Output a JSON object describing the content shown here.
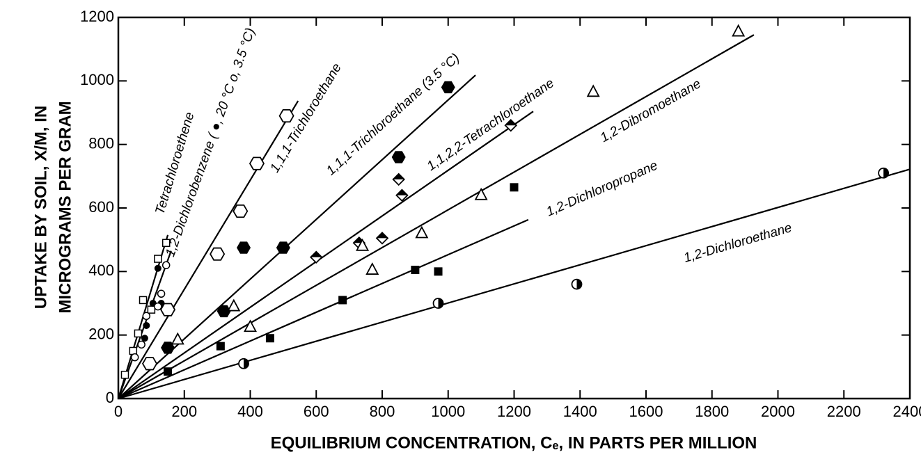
{
  "chart_data": {
    "type": "scatter",
    "xlabel": "EQUILIBRIUM CONCENTRATION, Cₑ, IN PARTS PER MILLION",
    "ylabel": [
      "UPTAKE BY SOIL, X/M, IN",
      "MICROGRAMS PER GRAM"
    ],
    "xlim": [
      0,
      2400
    ],
    "ylim": [
      0,
      1200
    ],
    "xticks": [
      0,
      200,
      400,
      600,
      800,
      1000,
      1200,
      1400,
      1600,
      1800,
      2000,
      2200,
      2400
    ],
    "yticks": [
      0,
      200,
      400,
      600,
      800,
      1000,
      1200
    ],
    "color": "#000000",
    "fits": [
      {
        "label": "Tetrachloroethene",
        "x": [
          0,
          150
        ],
        "y": [
          0,
          515
        ]
      },
      {
        "label": "1,2-Dichlorobenzene ( ●, 20 °C  o, 3.5 °C)",
        "x": [
          0,
          160
        ],
        "y": [
          0,
          465
        ]
      },
      {
        "label": "1,1,1-Trichloroethane",
        "x": [
          0,
          545
        ],
        "y": [
          0,
          937
        ]
      },
      {
        "label": "1,1,1-Trichloroethane (3.5 °C)",
        "x": [
          0,
          1083
        ],
        "y": [
          0,
          1018
        ]
      },
      {
        "label": "1,1,2,2-Tetrachloroethane",
        "x": [
          0,
          1258
        ],
        "y": [
          0,
          904
        ]
      },
      {
        "label": "1,2-Dibromoethane",
        "x": [
          0,
          1927
        ],
        "y": [
          0,
          1145
        ]
      },
      {
        "label": "1,2-Dichloropropane",
        "x": [
          0,
          1243
        ],
        "y": [
          0,
          563
        ]
      },
      {
        "label": "1,2-Dichloroethane",
        "x": [
          0,
          2400
        ],
        "y": [
          0,
          722
        ]
      }
    ],
    "series": [
      {
        "marker": "open-square",
        "x": [
          20,
          45,
          60,
          75,
          100,
          120,
          145
        ],
        "y": [
          75,
          150,
          205,
          310,
          280,
          440,
          490
        ]
      },
      {
        "marker": "filled-circle",
        "x": [
          80,
          85,
          105,
          120,
          130
        ],
        "y": [
          190,
          230,
          300,
          410,
          300
        ]
      },
      {
        "marker": "open-circle",
        "x": [
          50,
          70,
          85,
          120,
          130,
          145
        ],
        "y": [
          130,
          170,
          260,
          290,
          330,
          420
        ]
      },
      {
        "marker": "open-hexagon",
        "x": [
          95,
          150,
          300,
          370,
          420,
          510
        ],
        "y": [
          110,
          280,
          455,
          590,
          740,
          890
        ]
      },
      {
        "marker": "filled-hexagon",
        "x": [
          150,
          320,
          380,
          500,
          850,
          1000
        ],
        "y": [
          160,
          275,
          475,
          475,
          760,
          980
        ]
      },
      {
        "marker": "half-diamond",
        "x": [
          600,
          730,
          800,
          850,
          860,
          1190
        ],
        "y": [
          445,
          490,
          505,
          690,
          640,
          860
        ]
      },
      {
        "marker": "open-triangle",
        "x": [
          180,
          350,
          400,
          740,
          770,
          920,
          1100,
          1440,
          1880
        ],
        "y": [
          185,
          290,
          225,
          480,
          405,
          520,
          640,
          965,
          1155
        ]
      },
      {
        "marker": "filled-square",
        "x": [
          150,
          310,
          460,
          680,
          900,
          970,
          1200
        ],
        "y": [
          85,
          165,
          190,
          310,
          405,
          400,
          665
        ]
      },
      {
        "marker": "half-circle",
        "x": [
          380,
          970,
          1390,
          2320
        ],
        "y": [
          110,
          300,
          360,
          710
        ]
      }
    ]
  }
}
